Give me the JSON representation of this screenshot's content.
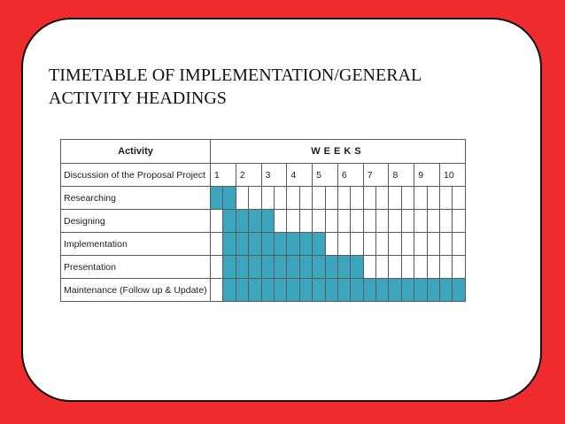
{
  "slide": {
    "title_line1": "TIMETABLE OF IMPLEMENTATION/GENERAL",
    "title_line2": "ACTIVITY HEADINGS"
  },
  "table": {
    "header_activity": "Activity",
    "header_weeks": "WEEKS",
    "week_row_label": "Discussion of the Proposal Project",
    "weeks": [
      "1",
      "2",
      "3",
      "4",
      "5",
      "6",
      "7",
      "8",
      "9",
      "10"
    ],
    "fill_color": "#3aa5bd",
    "tasks": [
      {
        "label": "Researching",
        "start_half": 1,
        "end_half": 2
      },
      {
        "label": "Designing",
        "start_half": 2,
        "end_half": 5
      },
      {
        "label": "Implementation",
        "start_half": 2,
        "end_half": 9
      },
      {
        "label": "Presentation",
        "start_half": 2,
        "end_half": 12
      },
      {
        "label": "Maintenance (Follow up & Update)",
        "start_half": 2,
        "end_half": 20
      }
    ]
  }
}
